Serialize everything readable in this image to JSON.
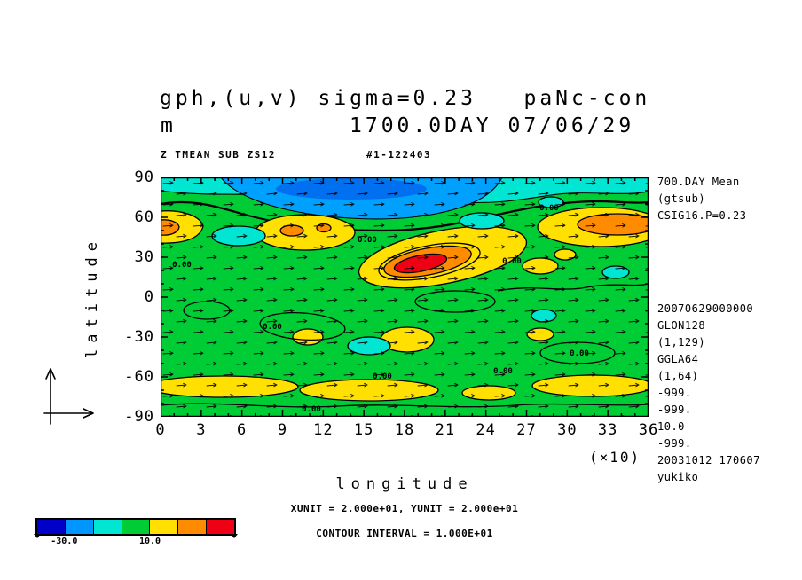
{
  "title": {
    "line1": "gph,(u,v) sigma=0.23   paNc-con",
    "units_label": "m",
    "line2": "1700.0DAY 07/06/29"
  },
  "subheader": {
    "left": "Z TMEAN SUB ZS12",
    "right": "#1-122403"
  },
  "axes": {
    "y_label": "latitude",
    "x_label": "longitude",
    "x_scale_note": "(×10)",
    "y_ticks": [
      "90",
      "60",
      "30",
      "0",
      "-30",
      "-60",
      "-90"
    ],
    "x_ticks": [
      "0",
      "3",
      "6",
      "9",
      "12",
      "15",
      "18",
      "21",
      "24",
      "27",
      "30",
      "33",
      "36"
    ]
  },
  "map": {
    "contour_label": "0.00",
    "colors": {
      "green": "#00cd35",
      "yellow": "#ffe000",
      "orange": "#ff8c00",
      "red": "#f00014",
      "cyan": "#00e6d2",
      "blue": "#00a0ff",
      "deep_blue": "#0070f0"
    }
  },
  "annotations_right": {
    "top": [
      "700.DAY Mean",
      "(gtsub)",
      "CSIG16.P=0.23"
    ],
    "bottom": [
      "20070629000000",
      "GLON128",
      "(1,129)",
      "GGLA64",
      "(1,64)",
      "-999.",
      "-999.",
      "10.0",
      "-999.",
      "20031012 170607",
      "yukiko"
    ]
  },
  "footer": {
    "units_line": "XUNIT = 2.000e+01, YUNIT = 2.000e+01",
    "contour_line": "CONTOUR INTERVAL = 1.000E+01"
  },
  "colorbar": {
    "colors": [
      "#0000c8",
      "#0096ff",
      "#00e6d2",
      "#00cd35",
      "#ffe000",
      "#ff8c00",
      "#f00014"
    ],
    "labels": [
      "-30.0",
      "10.0"
    ]
  },
  "chart_data": {
    "type": "heatmap",
    "subtype": "filled contour map of geopotential height with (u,v) wind vectors",
    "title": "gph,(u,v) sigma=0.23   paNc-con",
    "units": "m",
    "time_label": "1700.0DAY 07/06/29",
    "averaging_note": "700.DAY Mean",
    "sigma_level": 0.23,
    "xlabel": "longitude",
    "ylabel": "latitude",
    "x_ticks": [
      0,
      3,
      6,
      9,
      12,
      15,
      18,
      21,
      24,
      27,
      30,
      33,
      36
    ],
    "x_tick_multiplier": 10,
    "x_range_deg": [
      0,
      360
    ],
    "y_ticks": [
      90,
      60,
      30,
      0,
      -30,
      -60,
      -90
    ],
    "y_range_deg": [
      -90,
      90
    ],
    "grid": "GLON128 x GGLA64",
    "contour_interval": 10.0,
    "zero_contour_label": "0.00",
    "labeled_color_levels": [
      -30.0,
      10.0
    ],
    "palette": [
      "#0000c8",
      "#0096ff",
      "#00e6d2",
      "#00cd35",
      "#ffe000",
      "#ff8c00",
      "#f00014"
    ],
    "vector_xunit": 20.0,
    "vector_yunit": 20.0,
    "notable_features": [
      {
        "feature": "polar low, blue fill, value < -30",
        "lat_range": [
          70,
          90
        ],
        "lon_x10_range": [
          5,
          26
        ]
      },
      {
        "feature": "strong closed maximum, red core, value > +40",
        "lat_range": [
          25,
          40
        ],
        "lon_x10_range": [
          17,
          22
        ]
      },
      {
        "feature": "yellow/orange ridge north-west edge, +10 to +30",
        "lat_range": [
          45,
          65
        ],
        "lon_x10_range": [
          0,
          4
        ]
      },
      {
        "feature": "yellow ridge with orange spots, +10 to +20",
        "lat_range": [
          40,
          60
        ],
        "lon_x10_range": [
          7,
          14
        ]
      },
      {
        "feature": "yellow/orange ridge north-east, +10 to +30",
        "lat_range": [
          45,
          65
        ],
        "lon_x10_range": [
          28,
          36
        ]
      },
      {
        "feature": "broken yellow band, approx +10",
        "lat_range": [
          -75,
          -55
        ],
        "lon_x10_range": [
          0,
          36
        ]
      },
      {
        "feature": "scattered cyan patches, approx -10",
        "lat_range": [
          -40,
          60
        ],
        "lon_x10_range": [
          0,
          36
        ]
      },
      {
        "feature": "background field, green, -10 to +10",
        "lat_range": [
          -90,
          90
        ],
        "lon_x10_range": [
          0,
          36
        ]
      }
    ]
  }
}
